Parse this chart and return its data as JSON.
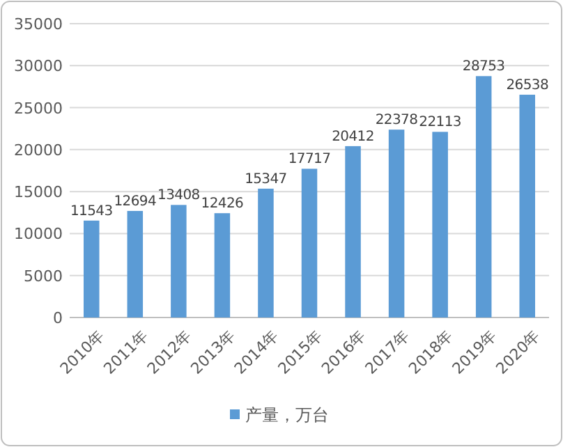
{
  "chart_data": {
    "type": "bar",
    "categories": [
      "2010年",
      "2011年",
      "2012年",
      "2013年",
      "2014年",
      "2015年",
      "2016年",
      "2017年",
      "2018年",
      "2019年",
      "2020年"
    ],
    "series": [
      {
        "name": "产量，万台",
        "color": "#5b9bd5",
        "values": [
          11543,
          12694,
          13408,
          12426,
          15347,
          17717,
          20412,
          22378,
          22113,
          28753,
          26538
        ]
      }
    ],
    "ylim": [
      0,
      35000
    ],
    "yticks": [
      0,
      5000,
      10000,
      15000,
      20000,
      25000,
      30000,
      35000
    ],
    "grid": "y",
    "legend": "bottom",
    "data_labels": true
  }
}
